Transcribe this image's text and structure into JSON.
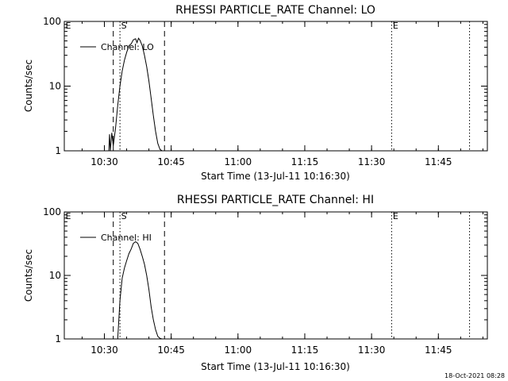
{
  "footer_timestamp": "18-Oct-2021 08:28",
  "chart_data": [
    {
      "type": "line",
      "title": "RHESSI PARTICLE_RATE Channel: LO",
      "xlabel": "Start Time (13-Jul-11 10:16:30)",
      "ylabel": "Counts/sec",
      "yscale": "log",
      "xlim": [
        "10:21:00",
        "11:56:00"
      ],
      "ylim": [
        1,
        100
      ],
      "x_ticks": [
        "10:30",
        "10:45",
        "11:00",
        "11:15",
        "11:30",
        "11:45"
      ],
      "y_ticks": [
        "1",
        "10",
        "100"
      ],
      "legend": {
        "entries": [
          "Channel: LO"
        ],
        "placement": "top-left"
      },
      "series": [
        {
          "name": "Channel: LO",
          "x": [
            "10:31:00",
            "10:31:10",
            "10:31:20",
            "10:31:40",
            "10:32:00",
            "10:32:30",
            "10:33:00",
            "10:33:30",
            "10:34:00",
            "10:34:30",
            "10:35:00",
            "10:35:30",
            "10:36:00",
            "10:36:30",
            "10:37:00",
            "10:37:20",
            "10:37:40",
            "10:38:00",
            "10:38:30",
            "10:39:00",
            "10:39:30",
            "10:40:00",
            "10:40:30",
            "10:41:00",
            "10:41:30",
            "10:42:00",
            "10:42:30",
            "10:43:00"
          ],
          "y": [
            1.0,
            1.8,
            1.0,
            1.9,
            1.2,
            2.2,
            5.0,
            10,
            17,
            25,
            33,
            42,
            45,
            52,
            54,
            47,
            55,
            51,
            42,
            30,
            20,
            12,
            6.5,
            3.5,
            2.0,
            1.3,
            1.05,
            1.0
          ]
        }
      ],
      "annotations": [
        {
          "label": "E",
          "x": "10:21:00",
          "style": "dotted"
        },
        {
          "label": "S",
          "x": "10:33:30",
          "style": "dotted"
        },
        {
          "label": "",
          "x": "10:32:00",
          "style": "dashed"
        },
        {
          "label": "",
          "x": "10:43:30",
          "style": "dashed"
        },
        {
          "label": "E",
          "x": "11:34:30",
          "style": "dotted"
        },
        {
          "label": "",
          "x": "11:52:00",
          "style": "dotted"
        }
      ]
    },
    {
      "type": "line",
      "title": "RHESSI PARTICLE_RATE Channel: HI",
      "xlabel": "Start Time (13-Jul-11 10:16:30)",
      "ylabel": "Counts/sec",
      "yscale": "log",
      "xlim": [
        "10:21:00",
        "11:56:00"
      ],
      "ylim": [
        1,
        100
      ],
      "x_ticks": [
        "10:30",
        "10:45",
        "11:00",
        "11:15",
        "11:30",
        "11:45"
      ],
      "y_ticks": [
        "1",
        "10",
        "100"
      ],
      "legend": {
        "entries": [
          "Channel: HI"
        ],
        "placement": "top-left"
      },
      "series": [
        {
          "name": "Channel: HI",
          "x": [
            "10:33:00",
            "10:33:30",
            "10:34:00",
            "10:34:30",
            "10:35:00",
            "10:35:30",
            "10:36:00",
            "10:36:30",
            "10:37:00",
            "10:37:30",
            "10:38:00",
            "10:38:30",
            "10:39:00",
            "10:39:30",
            "10:40:00",
            "10:40:30",
            "10:41:00",
            "10:41:30",
            "10:42:00",
            "10:42:30",
            "10:43:00"
          ],
          "y": [
            1.0,
            4.0,
            9.0,
            13,
            17,
            22,
            26,
            32,
            34,
            32,
            26,
            20,
            15,
            10,
            6,
            3.2,
            2.0,
            1.4,
            1.1,
            1.02,
            1.0
          ]
        }
      ],
      "annotations": [
        {
          "label": "E",
          "x": "10:21:00",
          "style": "dotted"
        },
        {
          "label": "S",
          "x": "10:33:30",
          "style": "dotted"
        },
        {
          "label": "",
          "x": "10:32:00",
          "style": "dashed"
        },
        {
          "label": "",
          "x": "10:43:30",
          "style": "dashed"
        },
        {
          "label": "E",
          "x": "11:34:30",
          "style": "dotted"
        },
        {
          "label": "",
          "x": "11:52:00",
          "style": "dotted"
        }
      ]
    }
  ]
}
